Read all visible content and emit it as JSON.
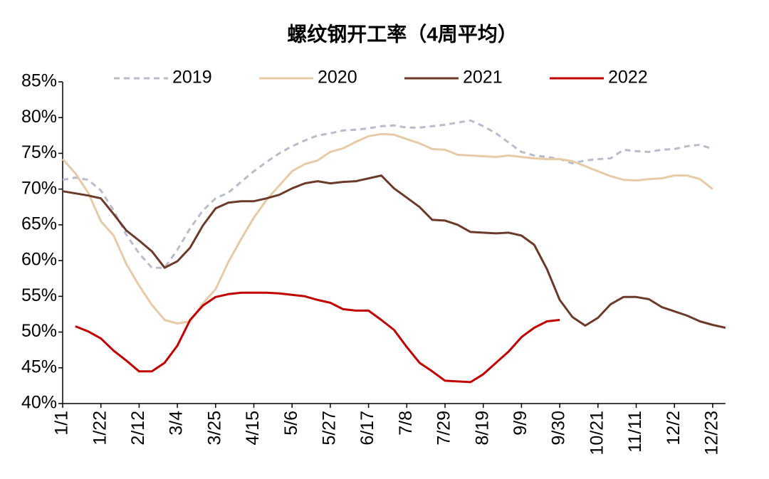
{
  "chart_data": {
    "type": "line",
    "title": "螺纹钢开工率（4周平均）",
    "categories": [
      "1/1",
      null,
      null,
      "1/22",
      null,
      null,
      "2/12",
      null,
      null,
      "3/4",
      null,
      null,
      "3/25",
      null,
      null,
      "4/15",
      null,
      null,
      "5/6",
      null,
      null,
      "5/27",
      null,
      null,
      "6/17",
      null,
      null,
      "7/8",
      null,
      null,
      "7/29",
      null,
      null,
      "8/19",
      null,
      null,
      "9/9",
      null,
      null,
      "9/30",
      null,
      null,
      "10/21",
      null,
      null,
      "11/11",
      null,
      null,
      "12/2",
      null,
      null,
      "12/23",
      null
    ],
    "series": [
      {
        "name": "2019",
        "color": "#b9bcc9",
        "style": "dashed",
        "values": [
          71.3,
          71.6,
          71.3,
          69.8,
          67,
          63.6,
          61,
          59,
          59,
          61.5,
          64.5,
          67,
          68.7,
          69.5,
          71,
          72.5,
          73.8,
          75,
          76,
          76.8,
          77.5,
          77.8,
          78.2,
          78.3,
          78.5,
          78.8,
          78.9,
          78.6,
          78.6,
          78.8,
          79,
          79.3,
          79.6,
          78.8,
          77.8,
          76.5,
          75.2,
          74.7,
          74.5,
          74.2,
          73.6,
          74,
          74.2,
          74.3,
          75.5,
          75.3,
          75.2,
          75.5,
          75.6,
          76,
          76.2,
          75.6,
          null
        ]
      },
      {
        "name": "2020",
        "color": "#e5cba8",
        "style": "solid",
        "values": [
          74.2,
          72.2,
          69.5,
          65.5,
          63.5,
          59.5,
          56.5,
          53.8,
          51.7,
          51.2,
          51.5,
          54,
          56,
          59.8,
          63,
          66,
          68.5,
          70.5,
          72.5,
          73.5,
          74,
          75.2,
          75.7,
          76.6,
          77.4,
          77.7,
          77.6,
          77,
          76.4,
          75.6,
          75.5,
          74.8,
          74.7,
          74.6,
          74.5,
          74.7,
          74.5,
          74.3,
          74.2,
          74.2,
          73.9,
          73.2,
          72.5,
          71.8,
          71.3,
          71.2,
          71.4,
          71.5,
          71.9,
          71.9,
          71.4,
          70,
          null
        ]
      },
      {
        "name": "2021",
        "color": "#6b3a2a",
        "style": "solid",
        "values": [
          69.7,
          69.4,
          69.1,
          68.7,
          66.5,
          64.2,
          62.8,
          61.3,
          59,
          59.9,
          61.8,
          64.9,
          67.3,
          68.1,
          68.3,
          68.3,
          68.7,
          69.2,
          70.1,
          70.8,
          71.1,
          70.8,
          71,
          71.1,
          71.5,
          71.9,
          70.1,
          68.8,
          67.5,
          65.7,
          65.6,
          65,
          64,
          63.9,
          63.8,
          63.9,
          63.5,
          62.2,
          58.8,
          54.5,
          52.1,
          50.9,
          52,
          53.9,
          54.9,
          54.9,
          54.6,
          53.5,
          52.9,
          52.3,
          51.5,
          51,
          50.6
        ]
      },
      {
        "name": "2022",
        "color": "#c00000",
        "style": "solid",
        "values": [
          null,
          50.8,
          50.1,
          49.1,
          47.4,
          46,
          44.5,
          44.5,
          45.7,
          48.1,
          51.7,
          53.7,
          54.9,
          55.3,
          55.5,
          55.5,
          55.5,
          55.4,
          55.2,
          55,
          54.5,
          54.1,
          53.2,
          53,
          53,
          51.7,
          50.3,
          47.9,
          45.7,
          44.5,
          43.2,
          43.1,
          43,
          44.1,
          45.7,
          47.3,
          49.3,
          50.6,
          51.5,
          51.7,
          null,
          null,
          null,
          null,
          null,
          null,
          null,
          null,
          null,
          null,
          null,
          null,
          null
        ]
      }
    ],
    "ylim": [
      40,
      85
    ],
    "yticks": [
      {
        "value": 40,
        "label": "40%"
      },
      {
        "value": 45,
        "label": "45%"
      },
      {
        "value": 50,
        "label": "50%"
      },
      {
        "value": 55,
        "label": "55%"
      },
      {
        "value": 60,
        "label": "60%"
      },
      {
        "value": 65,
        "label": "65%"
      },
      {
        "value": 70,
        "label": "70%"
      },
      {
        "value": 75,
        "label": "75%"
      },
      {
        "value": 80,
        "label": "80%"
      },
      {
        "value": 85,
        "label": "85%"
      }
    ],
    "grid": false,
    "legend": "top"
  }
}
